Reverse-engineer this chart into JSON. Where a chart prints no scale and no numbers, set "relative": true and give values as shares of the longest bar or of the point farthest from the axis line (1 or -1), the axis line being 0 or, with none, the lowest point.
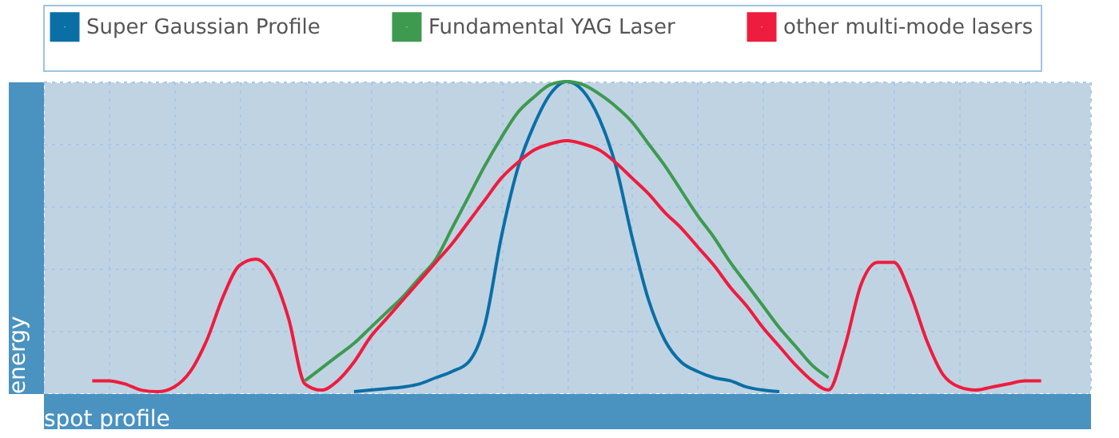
{
  "chart_data": {
    "type": "line",
    "relative": true,
    "ylabel": "energy",
    "xlabel": "spot profile",
    "grid": true,
    "legend": "top",
    "line_style": "solid",
    "marker": "none",
    "categories": [
      null,
      null,
      null,
      null,
      null,
      null,
      null,
      null,
      null,
      null,
      null,
      null,
      null,
      null,
      null,
      null,
      null,
      null,
      null,
      null,
      null,
      null,
      null,
      null,
      null,
      null,
      null,
      null,
      null,
      null,
      null,
      null,
      null,
      null,
      null,
      null,
      null,
      null,
      null,
      null,
      null,
      null,
      null,
      null,
      null,
      null,
      null,
      null,
      null,
      null,
      null,
      null,
      null,
      null,
      null,
      null,
      null,
      null,
      null,
      null,
      null,
      null,
      null,
      null,
      null
    ],
    "series": [
      {
        "name": "Super Gaussian Profile",
        "color": "#0a6fa5",
        "values": [
          null,
          null,
          null,
          null,
          null,
          null,
          null,
          null,
          null,
          null,
          null,
          null,
          null,
          null,
          null,
          null,
          null,
          null,
          null,
          0.005,
          0.01,
          0.015,
          0.02,
          0.03,
          0.05,
          0.07,
          0.1,
          0.22,
          0.5,
          0.72,
          0.86,
          0.96,
          1.0,
          0.97,
          0.88,
          0.73,
          0.5,
          0.3,
          0.17,
          0.1,
          0.07,
          0.05,
          0.04,
          0.02,
          0.01,
          0.005,
          null,
          null,
          null,
          null,
          null,
          null,
          null,
          null,
          null,
          null,
          null,
          null,
          null,
          null,
          null,
          null,
          null,
          null,
          null
        ]
      },
      {
        "name": "Fundamental YAG Laser",
        "color": "#3d9a4f",
        "values": [
          null,
          null,
          null,
          null,
          null,
          null,
          null,
          null,
          null,
          null,
          null,
          null,
          null,
          null,
          null,
          null,
          0.04,
          0.08,
          0.12,
          0.16,
          0.21,
          0.26,
          0.31,
          0.37,
          0.43,
          0.53,
          0.63,
          0.73,
          0.82,
          0.9,
          0.95,
          0.99,
          1.0,
          0.99,
          0.96,
          0.92,
          0.87,
          0.8,
          0.73,
          0.65,
          0.57,
          0.5,
          0.42,
          0.35,
          0.28,
          0.21,
          0.15,
          0.09,
          0.05,
          null,
          null,
          null,
          null,
          null,
          null,
          null,
          null,
          null,
          null,
          null,
          null,
          null,
          null,
          null,
          null
        ]
      },
      {
        "name": "other multi-mode lasers",
        "color": "#ee1c3e",
        "values": [
          null,
          null,
          null,
          0.04,
          0.04,
          0.03,
          0.01,
          0.005,
          0.02,
          0.07,
          0.17,
          0.31,
          0.41,
          0.43,
          0.38,
          0.24,
          0.03,
          0.01,
          0.04,
          0.1,
          0.18,
          0.24,
          0.3,
          0.36,
          0.42,
          0.48,
          0.55,
          0.62,
          0.69,
          0.74,
          0.78,
          0.8,
          0.81,
          0.8,
          0.78,
          0.74,
          0.69,
          0.64,
          0.58,
          0.53,
          0.47,
          0.41,
          0.34,
          0.28,
          0.21,
          0.15,
          0.09,
          0.04,
          0.01,
          0.15,
          0.35,
          0.42,
          0.42,
          0.32,
          0.17,
          0.06,
          0.02,
          0.01,
          0.02,
          0.03,
          0.04,
          0.04,
          null,
          null,
          null
        ]
      }
    ]
  }
}
